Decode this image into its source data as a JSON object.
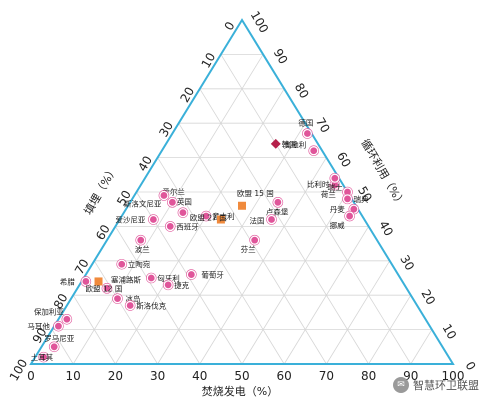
{
  "chart_data": {
    "type": "scatter",
    "subtype": "ternary",
    "title": "",
    "axes": {
      "bottom": {
        "label": "焚烧发电（%）",
        "ticks": [
          0,
          10,
          20,
          30,
          40,
          50,
          60,
          70,
          80,
          90,
          100
        ]
      },
      "left": {
        "label": "填埋（%）",
        "ticks": [
          0,
          10,
          20,
          30,
          40,
          50,
          60,
          70,
          80,
          90,
          100
        ]
      },
      "right": {
        "label": "循环利用（%）",
        "ticks": [
          0,
          10,
          20,
          30,
          40,
          50,
          60,
          70,
          80,
          90,
          100
        ]
      }
    },
    "grid": true,
    "colors": {
      "triangle": "#3ab0d9",
      "grid": "#d6d6d6",
      "country": "#e0559a",
      "eu": "#f08a3c",
      "korea": "#b5204a"
    },
    "series": [
      {
        "type": "country",
        "points": [
          {
            "label": "奥地利",
            "landfill": 2,
            "incineration": 36,
            "recycling": 62
          },
          {
            "label": "德国",
            "landfill": 1,
            "incineration": 32,
            "recycling": 67
          },
          {
            "label": "荷兰",
            "landfill": 2,
            "incineration": 46,
            "recycling": 52
          },
          {
            "label": "比利时",
            "landfill": 1,
            "incineration": 45,
            "recycling": 54
          },
          {
            "label": "瑞士",
            "landfill": 0,
            "incineration": 50,
            "recycling": 50
          },
          {
            "label": "瑞典",
            "landfill": 1,
            "incineration": 51,
            "recycling": 48
          },
          {
            "label": "丹麦",
            "landfill": 1,
            "incineration": 54,
            "recycling": 45
          },
          {
            "label": "挪威",
            "landfill": 3,
            "incineration": 54,
            "recycling": 43
          },
          {
            "label": "卢森堡",
            "landfill": 18,
            "incineration": 35,
            "recycling": 47
          },
          {
            "label": "法国",
            "landfill": 22,
            "incineration": 36,
            "recycling": 42
          },
          {
            "label": "爱尔兰",
            "landfill": 43,
            "incineration": 10,
            "recycling": 47
          },
          {
            "label": "英国",
            "landfill": 42,
            "incineration": 14,
            "recycling": 44
          },
          {
            "label": "斯洛文尼亚",
            "landfill": 44,
            "incineration": 7,
            "recycling": 49
          },
          {
            "label": "意大利",
            "landfill": 37,
            "incineration": 20,
            "recycling": 43
          },
          {
            "label": "芬兰",
            "landfill": 29,
            "incineration": 35,
            "recycling": 36
          },
          {
            "label": "西班牙",
            "landfill": 47,
            "incineration": 13,
            "recycling": 40
          },
          {
            "label": "爱沙尼亚",
            "landfill": 50,
            "incineration": 8,
            "recycling": 42
          },
          {
            "label": "波兰",
            "landfill": 56,
            "incineration": 8,
            "recycling": 36
          },
          {
            "label": "立陶宛",
            "landfill": 64,
            "incineration": 7,
            "recycling": 29
          },
          {
            "label": "葡萄牙",
            "landfill": 49,
            "incineration": 25,
            "recycling": 26
          },
          {
            "label": "匈牙利",
            "landfill": 59,
            "incineration": 16,
            "recycling": 25
          },
          {
            "label": "希腊",
            "landfill": 75,
            "incineration": 1,
            "recycling": 24
          },
          {
            "label": "塞浦路斯",
            "landfill": 71,
            "incineration": 7,
            "recycling": 22
          },
          {
            "label": "捷克",
            "landfill": 56,
            "incineration": 21,
            "recycling": 23
          },
          {
            "label": "冰岛",
            "landfill": 70,
            "incineration": 11,
            "recycling": 19
          },
          {
            "label": "斯洛伐克",
            "landfill": 68,
            "incineration": 15,
            "recycling": 17
          },
          {
            "label": "保加利亚",
            "landfill": 85,
            "incineration": 2,
            "recycling": 13
          },
          {
            "label": "马耳他",
            "landfill": 88,
            "incineration": 1,
            "recycling": 11
          },
          {
            "label": "罗马尼亚",
            "landfill": 92,
            "incineration": 3,
            "recycling": 5
          },
          {
            "label": "土耳其",
            "landfill": 96,
            "incineration": 2,
            "recycling": 2
          }
        ]
      },
      {
        "type": "eu",
        "points": [
          {
            "label": "欧盟 15 国",
            "landfill": 27,
            "incineration": 27,
            "recycling": 46
          },
          {
            "label": "欧盟 27 国",
            "landfill": 34,
            "incineration": 24,
            "recycling": 42
          },
          {
            "label": "欧盟 12 国",
            "landfill": 72,
            "incineration": 4,
            "recycling": 24
          }
        ]
      },
      {
        "type": "korea",
        "points": [
          {
            "label": "韩国",
            "landfill": 10,
            "incineration": 26,
            "recycling": 64
          }
        ]
      }
    ]
  },
  "watermark": {
    "text": "智慧环卫联盟",
    "icon": "wechat-icon"
  }
}
